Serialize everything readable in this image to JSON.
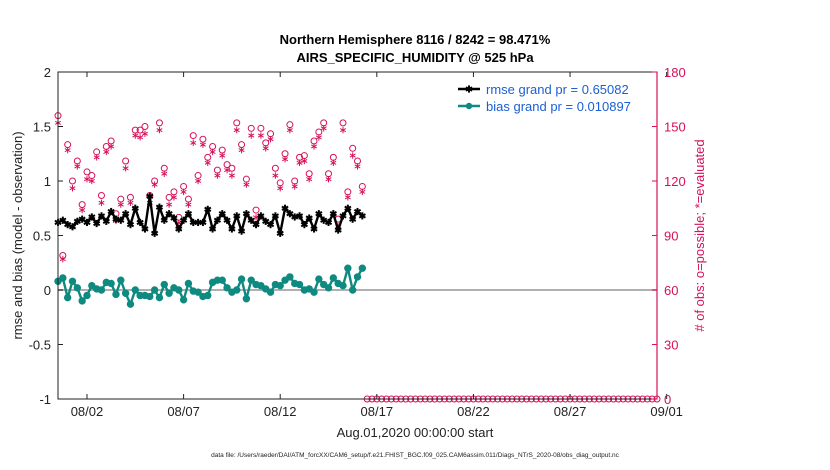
{
  "chart_data": {
    "type": "line",
    "title": "Northern Hemisphere 8116 / 8242 = 98.471%",
    "subtitle": "AIRS_SPECIFIC_HUMIDITY @ 525 hPa",
    "xlabel": "Aug.01,2020 00:00:00 start",
    "ylabel": "rmse and bias (model - observation)",
    "ylabel_right": "# of obs: o=possible; *=evaluated",
    "footer": "data file: /Users/raeder/DAI/ATM_forcXX/CAM6_setup/f.e21.FHIST_BGC.f09_025.CAM6assim.011/Diags_NTrS_2020-08/obs_diag_output.nc",
    "xlim": [
      0.5,
      31.5
    ],
    "ylim": [
      -1,
      2
    ],
    "ylim_right": [
      0,
      180
    ],
    "x_ticks": [
      2,
      7,
      12,
      17,
      22,
      27,
      32
    ],
    "x_tick_labels": [
      "08/02",
      "08/07",
      "08/12",
      "08/17",
      "08/22",
      "08/27",
      "09/01"
    ],
    "y_ticks": [
      -1,
      -0.5,
      0,
      0.5,
      1,
      1.5,
      2
    ],
    "y_tick_labels": [
      "-1",
      "-0.5",
      "0",
      "0.5",
      "1",
      "1.5",
      "2"
    ],
    "y_right_ticks": [
      0,
      30,
      60,
      90,
      120,
      150,
      180
    ],
    "y_right_tick_labels": [
      "0",
      "30",
      "60",
      "90",
      "120",
      "150",
      "180"
    ],
    "legend_position": "top-right",
    "grid": false,
    "colors": {
      "rmse": "#000000",
      "bias": "#0e8a80",
      "obs": "#d6105a",
      "zero_line": "#b0b0b0",
      "legend_text": "#1a5fd6"
    },
    "series": [
      {
        "name": "rmse grand pr = 0.65082",
        "axis": "left",
        "x": [
          0.5,
          0.75,
          1.0,
          1.25,
          1.5,
          1.75,
          2.0,
          2.25,
          2.5,
          2.75,
          3.0,
          3.25,
          3.5,
          3.75,
          4.0,
          4.25,
          4.5,
          4.75,
          5.0,
          5.25,
          5.5,
          5.75,
          6.0,
          6.25,
          6.5,
          6.75,
          7.0,
          7.25,
          7.5,
          7.75,
          8.0,
          8.25,
          8.5,
          8.75,
          9.0,
          9.25,
          9.5,
          9.75,
          10.0,
          10.25,
          10.5,
          10.75,
          11.0,
          11.25,
          11.5,
          11.75,
          12.0,
          12.25,
          12.5,
          12.75,
          13.0,
          13.25,
          13.5,
          13.75,
          14.0,
          14.25,
          14.5,
          14.75,
          15.0,
          15.25,
          15.5,
          15.75,
          16.0,
          16.25
        ],
        "values": [
          0.62,
          0.64,
          0.6,
          0.58,
          0.63,
          0.65,
          0.62,
          0.67,
          0.61,
          0.68,
          0.63,
          0.72,
          0.65,
          0.64,
          0.7,
          0.6,
          0.75,
          0.62,
          0.56,
          0.86,
          0.52,
          0.76,
          0.64,
          0.7,
          0.66,
          0.56,
          0.64,
          0.7,
          0.62,
          0.62,
          0.62,
          0.74,
          0.56,
          0.64,
          0.7,
          0.64,
          0.56,
          0.68,
          0.54,
          0.7,
          0.64,
          0.6,
          0.68,
          0.63,
          0.6,
          0.68,
          0.52,
          0.75,
          0.7,
          0.67,
          0.68,
          0.6,
          0.66,
          0.56,
          0.7,
          0.64,
          0.62,
          0.7,
          0.55,
          0.68,
          0.75,
          0.65,
          0.72,
          0.68
        ]
      },
      {
        "name": "bias grand pr = 0.010897",
        "axis": "left",
        "x": [
          0.5,
          0.75,
          1.0,
          1.25,
          1.5,
          1.75,
          2.0,
          2.25,
          2.5,
          2.75,
          3.0,
          3.25,
          3.5,
          3.75,
          4.0,
          4.25,
          4.5,
          4.75,
          5.0,
          5.25,
          5.5,
          5.75,
          6.0,
          6.25,
          6.5,
          6.75,
          7.0,
          7.25,
          7.5,
          7.75,
          8.0,
          8.25,
          8.5,
          8.75,
          9.0,
          9.25,
          9.5,
          9.75,
          10.0,
          10.25,
          10.5,
          10.75,
          11.0,
          11.25,
          11.5,
          11.75,
          12.0,
          12.25,
          12.5,
          12.75,
          13.0,
          13.25,
          13.5,
          13.75,
          14.0,
          14.25,
          14.5,
          14.75,
          15.0,
          15.25,
          15.5,
          15.75,
          16.0,
          16.25
        ],
        "values": [
          0.08,
          0.11,
          -0.07,
          0.08,
          0.02,
          -0.1,
          -0.05,
          0.04,
          0.01,
          0.0,
          0.07,
          0.06,
          -0.04,
          0.09,
          -0.03,
          -0.13,
          0.0,
          -0.05,
          -0.05,
          -0.06,
          0.0,
          -0.07,
          0.05,
          -0.03,
          0.02,
          0.0,
          -0.09,
          0.06,
          -0.01,
          -0.02,
          -0.06,
          -0.05,
          0.07,
          0.09,
          0.09,
          0.02,
          -0.02,
          0.0,
          0.1,
          -0.08,
          0.09,
          0.05,
          0.04,
          0.01,
          -0.02,
          0.05,
          0.04,
          0.09,
          0.12,
          0.06,
          0.05,
          0.0,
          0.01,
          -0.02,
          0.1,
          0.05,
          0.02,
          0.11,
          0.06,
          0.04,
          0.2,
          0.0,
          0.12,
          0.2
        ]
      },
      {
        "name": "possible",
        "axis": "right",
        "marker": "circle",
        "x": [
          0.5,
          0.75,
          1.0,
          1.25,
          1.5,
          1.75,
          2.0,
          2.25,
          2.5,
          2.75,
          3.0,
          3.25,
          3.5,
          3.75,
          4.0,
          4.25,
          4.5,
          4.75,
          5.0,
          5.25,
          5.5,
          5.75,
          6.0,
          6.25,
          6.5,
          6.75,
          7.0,
          7.25,
          7.5,
          7.75,
          8.0,
          8.25,
          8.5,
          8.75,
          9.0,
          9.25,
          9.5,
          9.75,
          10.0,
          10.25,
          10.5,
          10.75,
          11.0,
          11.25,
          11.5,
          11.75,
          12.0,
          12.25,
          12.5,
          12.75,
          13.0,
          13.25,
          13.5,
          13.75,
          14.0,
          14.25,
          14.5,
          14.75,
          15.0,
          15.25,
          15.5,
          15.75,
          16.0,
          16.25
        ],
        "values": [
          156,
          79,
          140,
          120,
          131,
          107,
          125,
          123,
          136,
          112,
          139,
          142,
          102,
          110,
          131,
          111,
          148,
          148,
          150,
          112,
          120,
          152,
          127,
          111,
          114,
          100,
          117,
          110,
          145,
          123,
          143,
          133,
          139,
          126,
          137,
          129,
          127,
          152,
          140,
          121,
          149,
          104,
          149,
          141,
          146,
          127,
          119,
          135,
          151,
          120,
          133,
          134,
          124,
          142,
          147,
          152,
          124,
          133,
          99,
          152,
          114,
          138,
          131,
          117
        ]
      },
      {
        "name": "evaluated",
        "axis": "right",
        "marker": "star",
        "x": [
          0.5,
          0.75,
          1.0,
          1.25,
          1.5,
          1.75,
          2.0,
          2.25,
          2.5,
          2.75,
          3.0,
          3.25,
          3.5,
          3.75,
          4.0,
          4.25,
          4.5,
          4.75,
          5.0,
          5.25,
          5.5,
          5.75,
          6.0,
          6.25,
          6.5,
          6.75,
          7.0,
          7.25,
          7.5,
          7.75,
          8.0,
          8.25,
          8.5,
          8.75,
          9.0,
          9.25,
          9.5,
          9.75,
          10.0,
          10.25,
          10.5,
          10.75,
          11.0,
          11.25,
          11.5,
          11.75,
          12.0,
          12.25,
          12.5,
          12.75,
          13.0,
          13.25,
          13.5,
          13.75,
          14.0,
          14.25,
          14.5,
          14.75,
          15.0,
          15.25,
          15.5,
          15.75,
          16.0,
          16.25
        ],
        "values": [
          152,
          77,
          137,
          116,
          128,
          104,
          121,
          120,
          133,
          108,
          136,
          139,
          98,
          107,
          127,
          108,
          145,
          144,
          146,
          108,
          118,
          148,
          124,
          107,
          111,
          97,
          114,
          107,
          141,
          120,
          140,
          130,
          136,
          123,
          134,
          126,
          123,
          148,
          137,
          118,
          145,
          100,
          145,
          138,
          143,
          123,
          116,
          132,
          148,
          117,
          130,
          131,
          121,
          139,
          144,
          149,
          121,
          130,
          95,
          148,
          111,
          134,
          128,
          114
        ]
      },
      {
        "name": "possible-empty",
        "axis": "right",
        "marker": "circle",
        "x": [
          16.5,
          16.75,
          17.0,
          17.25,
          17.5,
          17.75,
          18.0,
          18.25,
          18.5,
          18.75,
          19.0,
          19.25,
          19.5,
          19.75,
          20.0,
          20.25,
          20.5,
          20.75,
          21.0,
          21.25,
          21.5,
          21.75,
          22.0,
          22.25,
          22.5,
          22.75,
          23.0,
          23.25,
          23.5,
          23.75,
          24.0,
          24.25,
          24.5,
          24.75,
          25.0,
          25.25,
          25.5,
          25.75,
          26.0,
          26.25,
          26.5,
          26.75,
          27.0,
          27.25,
          27.5,
          27.75,
          28.0,
          28.25,
          28.5,
          28.75,
          29.0,
          29.25,
          29.5,
          29.75,
          30.0,
          30.25,
          30.5,
          30.75,
          31.0,
          31.25,
          31.5
        ],
        "values": [
          0,
          0,
          0,
          0,
          0,
          0,
          0,
          0,
          0,
          0,
          0,
          0,
          0,
          0,
          0,
          0,
          0,
          0,
          0,
          0,
          0,
          0,
          0,
          0,
          0,
          0,
          0,
          0,
          0,
          0,
          0,
          0,
          0,
          0,
          0,
          0,
          0,
          0,
          0,
          0,
          0,
          0,
          0,
          0,
          0,
          0,
          0,
          0,
          0,
          0,
          0,
          0,
          0,
          0,
          0,
          0,
          0,
          0,
          0,
          0,
          0
        ]
      }
    ]
  }
}
